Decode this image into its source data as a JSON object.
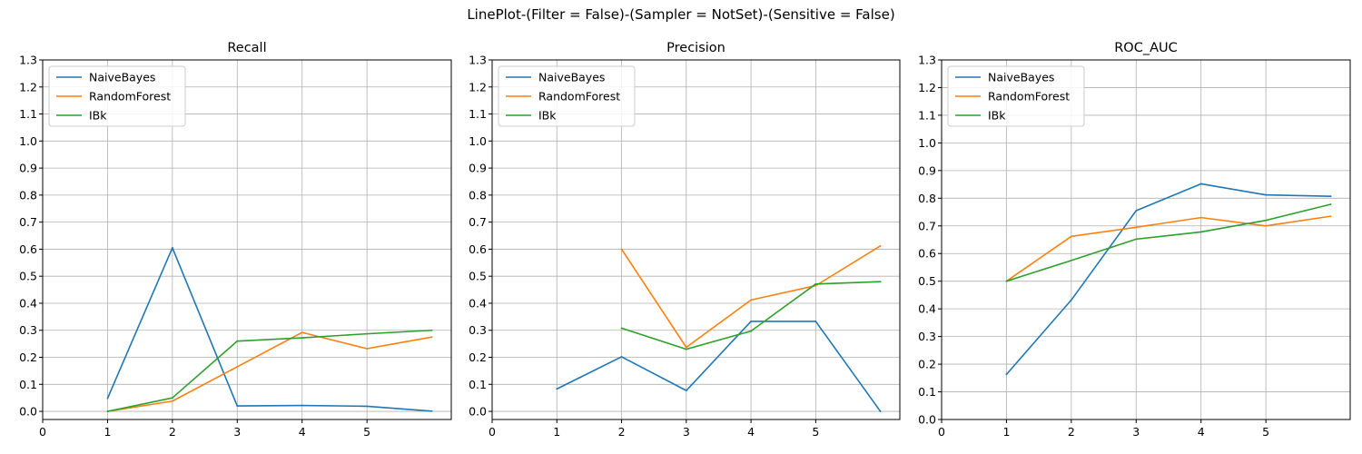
{
  "figure": {
    "suptitle": "LinePlot-(Filter = False)-(Sampler = NotSet)-(Sensitive = False)"
  },
  "chart_data": [
    {
      "type": "line",
      "title": "Recall",
      "xlabel": "",
      "ylabel": "",
      "xlim": [
        0,
        6.3
      ],
      "ylim": [
        -0.03,
        1.3
      ],
      "xticks": [
        0,
        1,
        2,
        3,
        4,
        5
      ],
      "yticks": [
        0.0,
        0.1,
        0.2,
        0.3,
        0.4,
        0.5,
        0.6,
        0.7,
        0.8,
        0.9,
        1.0,
        1.1,
        1.2,
        1.3
      ],
      "grid": true,
      "legend_position": "top-left",
      "series": [
        {
          "name": "NaiveBayes",
          "color": "#1f77b4",
          "x": [
            1,
            2,
            3,
            4,
            5,
            6
          ],
          "values": [
            0.048,
            0.605,
            0.02,
            0.022,
            0.019,
            0.001
          ]
        },
        {
          "name": "RandomForest",
          "color": "#ff7f0e",
          "x": [
            1,
            2,
            3,
            4,
            5,
            6
          ],
          "values": [
            0.0,
            0.038,
            0.165,
            0.292,
            0.232,
            0.275
          ]
        },
        {
          "name": "IBk",
          "color": "#2ca02c",
          "x": [
            1,
            2,
            3,
            4,
            5,
            6
          ],
          "values": [
            0.0,
            0.05,
            0.26,
            0.272,
            0.287,
            0.3
          ]
        }
      ]
    },
    {
      "type": "line",
      "title": "Precision",
      "xlabel": "",
      "ylabel": "",
      "xlim": [
        0,
        6.3
      ],
      "ylim": [
        -0.03,
        1.3
      ],
      "xticks": [
        0,
        1,
        2,
        3,
        4,
        5
      ],
      "yticks": [
        0.0,
        0.1,
        0.2,
        0.3,
        0.4,
        0.5,
        0.6,
        0.7,
        0.8,
        0.9,
        1.0,
        1.1,
        1.2,
        1.3
      ],
      "grid": true,
      "legend_position": "top-left",
      "series": [
        {
          "name": "NaiveBayes",
          "color": "#1f77b4",
          "x": [
            1,
            2,
            3,
            4,
            5,
            6
          ],
          "values": [
            0.083,
            0.202,
            0.077,
            0.333,
            0.333,
            0.0
          ]
        },
        {
          "name": "RandomForest",
          "color": "#ff7f0e",
          "x": [
            2,
            3,
            4,
            5,
            6
          ],
          "values": [
            0.6,
            0.237,
            0.412,
            0.465,
            0.612
          ]
        },
        {
          "name": "IBk",
          "color": "#2ca02c",
          "x": [
            2,
            3,
            4,
            5,
            6
          ],
          "values": [
            0.308,
            0.23,
            0.297,
            0.471,
            0.48
          ]
        }
      ]
    },
    {
      "type": "line",
      "title": "ROC_AUC",
      "xlabel": "",
      "ylabel": "",
      "xlim": [
        0,
        6.3
      ],
      "ylim": [
        0.0,
        1.3
      ],
      "xticks": [
        0,
        1,
        2,
        3,
        4,
        5
      ],
      "yticks": [
        0.0,
        0.1,
        0.2,
        0.3,
        0.4,
        0.5,
        0.6,
        0.7,
        0.8,
        0.9,
        1.0,
        1.1,
        1.2,
        1.3
      ],
      "grid": true,
      "legend_position": "top-left",
      "series": [
        {
          "name": "NaiveBayes",
          "color": "#1f77b4",
          "x": [
            1,
            2,
            3,
            4,
            5,
            6
          ],
          "values": [
            0.163,
            0.432,
            0.755,
            0.852,
            0.812,
            0.807
          ]
        },
        {
          "name": "RandomForest",
          "color": "#ff7f0e",
          "x": [
            1,
            2,
            3,
            4,
            5,
            6
          ],
          "values": [
            0.5,
            0.662,
            0.695,
            0.73,
            0.7,
            0.735
          ]
        },
        {
          "name": "IBk",
          "color": "#2ca02c",
          "x": [
            1,
            2,
            3,
            4,
            5,
            6
          ],
          "values": [
            0.5,
            0.575,
            0.652,
            0.678,
            0.72,
            0.778
          ]
        }
      ]
    }
  ]
}
